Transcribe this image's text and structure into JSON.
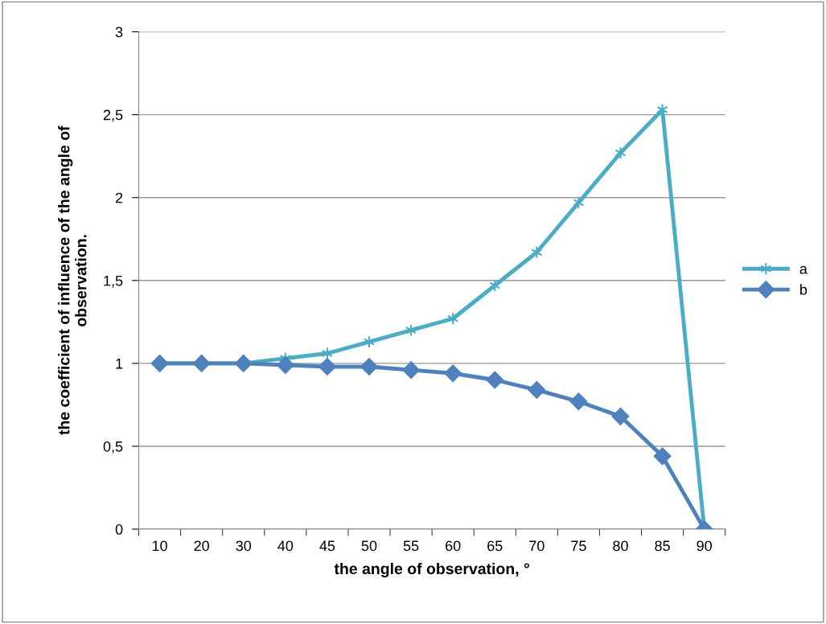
{
  "chart_data": {
    "type": "line",
    "xlabel": "the angle of observation, °",
    "ylabel": "the coefficient of influence of the angle of\nobservation.",
    "categories": [
      "10",
      "20",
      "30",
      "40",
      "45",
      "50",
      "55",
      "60",
      "65",
      "70",
      "75",
      "80",
      "85",
      "90"
    ],
    "series": [
      {
        "name": "a",
        "color": "#4bacc6",
        "marker": "cross",
        "values": [
          1,
          1,
          1,
          1.03,
          1.06,
          1.13,
          1.2,
          1.27,
          1.47,
          1.67,
          1.97,
          2.27,
          2.53,
          0
        ]
      },
      {
        "name": "b",
        "color": "#4f81bd",
        "marker": "diamond",
        "values": [
          1,
          1,
          1,
          0.99,
          0.98,
          0.98,
          0.96,
          0.94,
          0.9,
          0.84,
          0.77,
          0.68,
          0.44,
          0
        ]
      }
    ],
    "ylim": [
      0,
      3
    ],
    "yticks": [
      {
        "value": 0,
        "label": "0"
      },
      {
        "value": 0.5,
        "label": "0,5"
      },
      {
        "value": 1,
        "label": "1"
      },
      {
        "value": 1.5,
        "label": "1,5"
      },
      {
        "value": 2,
        "label": "2"
      },
      {
        "value": 2.5,
        "label": "2,5"
      },
      {
        "value": 3,
        "label": "3"
      }
    ],
    "grid": "y",
    "legend": "right"
  }
}
